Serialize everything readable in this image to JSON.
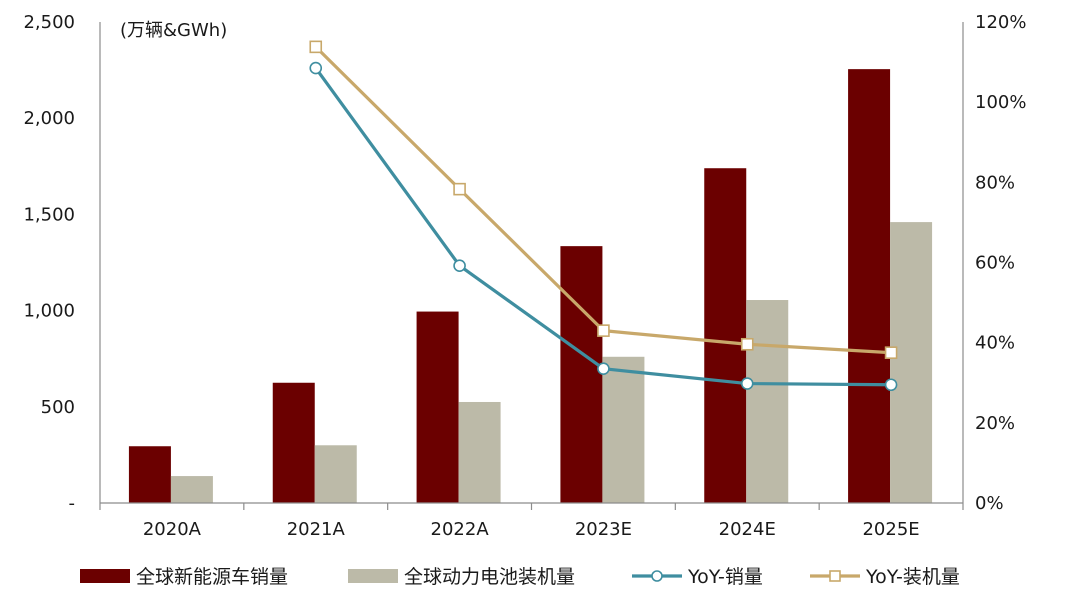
{
  "chart_data": {
    "type": "bar",
    "unit_label": "(万辆&GWh)",
    "categories": [
      "2020A",
      "2021A",
      "2022A",
      "2023E",
      "2024E",
      "2025E"
    ],
    "bar_series": [
      {
        "name": "全球新能源车销量",
        "color": "#6b0000",
        "values": [
          295,
          625,
          995,
          1335,
          1740,
          2255
        ]
      },
      {
        "name": "全球动力电池装机量",
        "color": "#bcbaa8",
        "values": [
          140,
          300,
          525,
          760,
          1055,
          1460
        ]
      }
    ],
    "line_series": [
      {
        "name": "YoY-销量",
        "color": "#3f8ea0",
        "marker": "circle",
        "values": [
          null,
          108.5,
          59.2,
          33.5,
          29.8,
          29.5
        ]
      },
      {
        "name": "YoY-装机量",
        "color": "#c8a86a",
        "marker": "square",
        "values": [
          null,
          113.8,
          78.3,
          43.0,
          39.6,
          37.5
        ]
      }
    ],
    "y_left": {
      "min": 0,
      "max": 2500,
      "ticks": [
        "-",
        "500",
        "1,000",
        "1,500",
        "2,000",
        "2,500"
      ]
    },
    "y_right": {
      "min": 0,
      "max": 120,
      "ticks": [
        "0%",
        "20%",
        "40%",
        "60%",
        "80%",
        "100%",
        "120%"
      ]
    },
    "legend_position": "bottom",
    "grid": false
  }
}
